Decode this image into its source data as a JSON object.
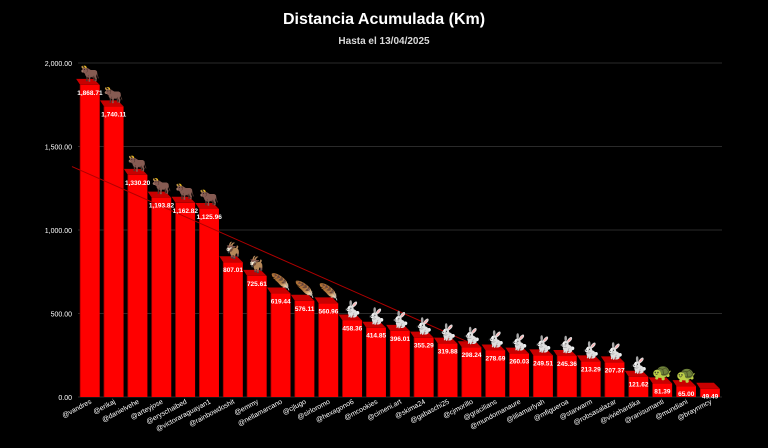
{
  "chart_data": {
    "type": "bar",
    "title": "Distancia Acumulada (Km)",
    "subtitle": "Hasta el 13/04/2025",
    "xlabel": "",
    "ylabel": "",
    "ylim": [
      0,
      2000
    ],
    "yticks": [
      {
        "value": 0,
        "label": "0.00"
      },
      {
        "value": 500,
        "label": "500.00"
      },
      {
        "value": 1000,
        "label": "1,000.00"
      },
      {
        "value": 1500,
        "label": "1,500.00"
      },
      {
        "value": 2000,
        "label": "2,000.00"
      }
    ],
    "grid": true,
    "bar_color": "#ff0000",
    "bar_top_color": "#c80000",
    "trendline_color": "#b00000",
    "categories": [
      "@vandres",
      "@erikaj",
      "@danielvehe",
      "@arteyjose",
      "@eryschaibed",
      "@victoraraguayan1",
      "@rainbowdoshit",
      "@emmy",
      "@nellamarcano",
      "@cjlugo",
      "@sirloromo",
      "@hexagono6",
      "@mcookies",
      "@cimeni.art",
      "@skima24",
      "@gabaschi25",
      "@cjmorillo",
      "@gracilians",
      "@mundomanaure",
      "@liliamarlyah",
      "@mfigueroa",
      "@starwarm",
      "@robsasalazar",
      "@viviehardika",
      "@ranisumanti",
      "@mundiani",
      "@braynmcy"
    ],
    "values": [
      1868.71,
      1740.11,
      1330.2,
      1193.82,
      1162.82,
      1125.96,
      807.01,
      725.61,
      619.44,
      576.11,
      560.96,
      458.36,
      414.85,
      396.01,
      355.29,
      319.88,
      298.24,
      278.69,
      260.03,
      249.51,
      245.36,
      213.29,
      207.37,
      121.62,
      81.39,
      65.0,
      49.49
    ],
    "value_labels": [
      "1,868.71",
      "1,740.11",
      "1,330.20",
      "1,193.82",
      "1,162.82",
      "1,125.96",
      "807.01",
      "725.61",
      "619.44",
      "576.11",
      "560.96",
      "458.36",
      "414.85",
      "396.01",
      "355.29",
      "319.88",
      "298.24",
      "278.69",
      "260.03",
      "249.51",
      "245.36",
      "213.29",
      "207.37",
      "121.62",
      "81.39",
      "65.00",
      "49.49"
    ],
    "icons": [
      "ox-icon",
      "ox-icon",
      "ox-icon",
      "ox-icon",
      "ox-icon",
      "ox-icon",
      "goat-icon",
      "goat-icon",
      "feather-icon",
      "feather-icon",
      "feather-icon",
      "rabbit-icon",
      "rabbit-icon",
      "rabbit-icon",
      "rabbit-icon",
      "rabbit-icon",
      "rabbit-icon",
      "rabbit-icon",
      "rabbit-icon",
      "rabbit-icon",
      "rabbit-icon",
      "rabbit-icon",
      "rabbit-icon",
      "rabbit-icon",
      "turtle-icon",
      "turtle-icon",
      ""
    ],
    "icon_glyphs": {
      "ox-icon": "🐂",
      "goat-icon": "🐐",
      "feather-icon": "🪶",
      "rabbit-icon": "🐇",
      "turtle-icon": "🐢"
    }
  }
}
